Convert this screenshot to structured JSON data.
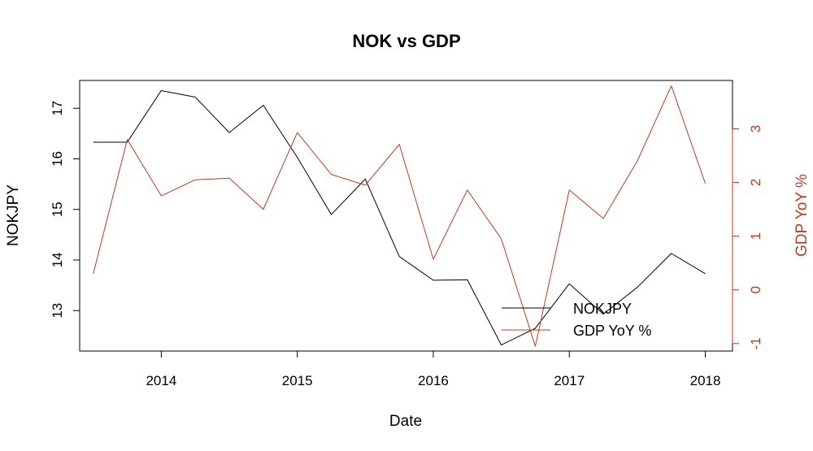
{
  "chart_data": {
    "type": "line",
    "title": "NOK vs GDP",
    "xlabel": "Date",
    "ylabel_left": "NOKJPY",
    "ylabel_right": "GDP YoY %",
    "x_ticks": [
      "2014",
      "2015",
      "2016",
      "2017",
      "2018"
    ],
    "y_left_ticks": [
      "13",
      "14",
      "15",
      "16",
      "17"
    ],
    "y_right_ticks": [
      "-1",
      "0",
      "1",
      "2",
      "3"
    ],
    "xlim": [
      2013.4,
      2018.2
    ],
    "ylim_left": [
      12.2,
      17.55
    ],
    "ylim_right": [
      -1.14,
      3.9
    ],
    "grid": false,
    "legend_position": "bottom-right",
    "colors": {
      "nokjpy": "#000000",
      "gdp": "#c23a1e"
    },
    "x": [
      "2013-07",
      "2013-10",
      "2014-01",
      "2014-04",
      "2014-07",
      "2014-10",
      "2015-01",
      "2015-04",
      "2015-07",
      "2015-10",
      "2016-01",
      "2016-04",
      "2016-07",
      "2016-10",
      "2017-01",
      "2017-04",
      "2017-07",
      "2017-10",
      "2018-01"
    ],
    "series": [
      {
        "name": "NOKJPY",
        "axis": "left",
        "values": [
          16.33,
          16.33,
          17.35,
          17.22,
          16.52,
          17.06,
          16.03,
          14.9,
          15.6,
          14.07,
          13.6,
          13.61,
          12.32,
          12.65,
          13.53,
          12.93,
          13.46,
          14.13,
          13.73
        ]
      },
      {
        "name": "GDP YoY %",
        "axis": "right",
        "values": [
          0.3,
          2.8,
          1.75,
          2.05,
          2.08,
          1.5,
          2.93,
          2.15,
          1.95,
          2.71,
          0.57,
          1.86,
          0.95,
          -1.05,
          1.86,
          1.33,
          2.4,
          3.8,
          1.98
        ]
      }
    ]
  }
}
